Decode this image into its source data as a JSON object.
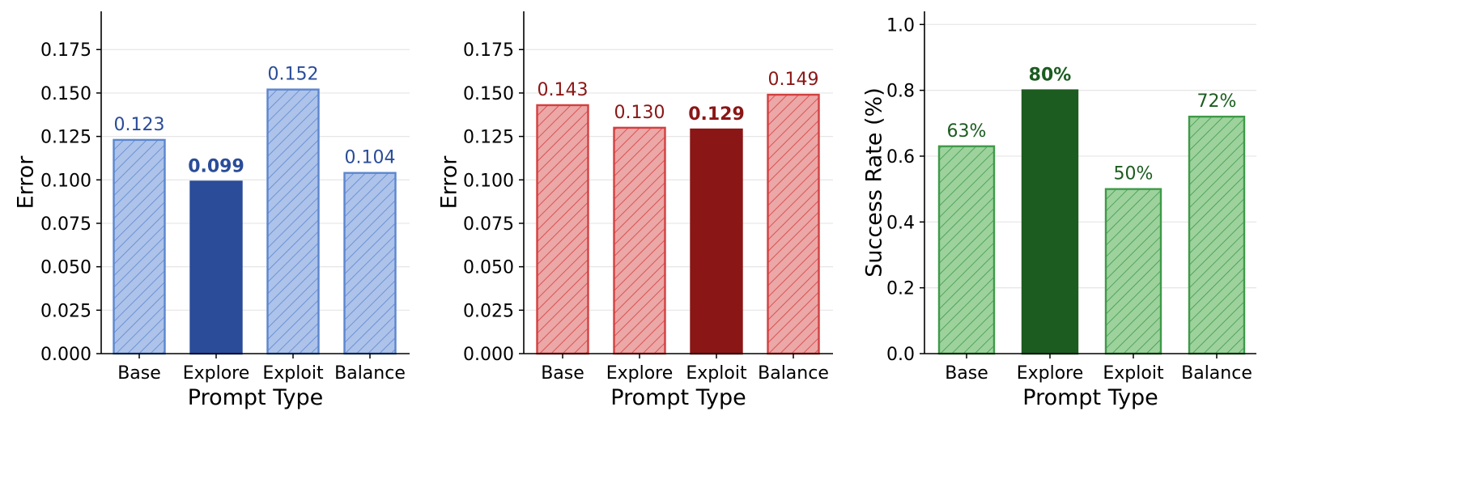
{
  "chart_data": [
    {
      "type": "bar",
      "categories": [
        "Base",
        "Explore",
        "Exploit",
        "Balance"
      ],
      "values": [
        0.123,
        0.099,
        0.152,
        0.104
      ],
      "value_labels": [
        "0.123",
        "0.099",
        "0.152",
        "0.104"
      ],
      "highlight_index": 1,
      "xlabel": "Prompt Type",
      "ylabel": "Error",
      "ylim": [
        0,
        0.197
      ],
      "yticks": [
        0,
        0.025,
        0.05,
        0.075,
        0.1,
        0.125,
        0.15,
        0.175
      ],
      "ytick_labels": [
        "0.000",
        "0.025",
        "0.050",
        "0.075",
        "0.100",
        "0.125",
        "0.150",
        "0.175"
      ],
      "grid": "horizontal",
      "colors": {
        "fill": "#aec3ea",
        "edge": "#5b86cf",
        "highlight": "#2a4c99",
        "label": "#2a4c99"
      }
    },
    {
      "type": "bar",
      "categories": [
        "Base",
        "Explore",
        "Exploit",
        "Balance"
      ],
      "values": [
        0.143,
        0.13,
        0.129,
        0.149
      ],
      "value_labels": [
        "0.143",
        "0.130",
        "0.129",
        "0.149"
      ],
      "highlight_index": 2,
      "xlabel": "Prompt Type",
      "ylabel": "Error",
      "ylim": [
        0,
        0.197
      ],
      "yticks": [
        0,
        0.025,
        0.05,
        0.075,
        0.1,
        0.125,
        0.15,
        0.175
      ],
      "ytick_labels": [
        "0.000",
        "0.025",
        "0.050",
        "0.075",
        "0.100",
        "0.125",
        "0.150",
        "0.175"
      ],
      "grid": "horizontal",
      "colors": {
        "fill": "#eca7a7",
        "edge": "#d43f3f",
        "highlight": "#8b1616",
        "label": "#8b1616"
      }
    },
    {
      "type": "bar",
      "categories": [
        "Base",
        "Explore",
        "Exploit",
        "Balance"
      ],
      "values": [
        0.63,
        0.8,
        0.5,
        0.72
      ],
      "value_labels": [
        "63%",
        "80%",
        "50%",
        "72%"
      ],
      "highlight_index": 1,
      "xlabel": "Prompt Type",
      "ylabel": "Success Rate (%)",
      "ylim": [
        0,
        1.04
      ],
      "yticks": [
        0,
        0.2,
        0.4,
        0.6,
        0.8,
        1.0
      ],
      "ytick_labels": [
        "0.0",
        "0.2",
        "0.4",
        "0.6",
        "0.8",
        "1.0"
      ],
      "grid": "horizontal",
      "colors": {
        "fill": "#9dd29d",
        "edge": "#3f9a49",
        "highlight": "#1c5c20",
        "label": "#1c5c20"
      }
    }
  ]
}
